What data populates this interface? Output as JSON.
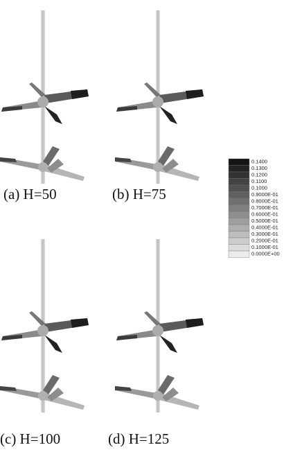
{
  "panels": [
    {
      "label": "(a) H=50"
    },
    {
      "label": "(b) H=75"
    },
    {
      "label": "(c) H=100"
    },
    {
      "label": "(d) H=125"
    }
  ],
  "legend": {
    "labels": [
      "0.1400",
      "0.1300",
      "0.1200",
      "0.1100",
      "0.1000",
      "0.9000E-01",
      "0.8000E-01",
      "0.7000E-01",
      "0.6000E-01",
      "0.5000E-01",
      "0.4000E-01",
      "0.3000E-01",
      "0.2000E-01",
      "0.1000E-01",
      "0.0000E+00"
    ]
  }
}
